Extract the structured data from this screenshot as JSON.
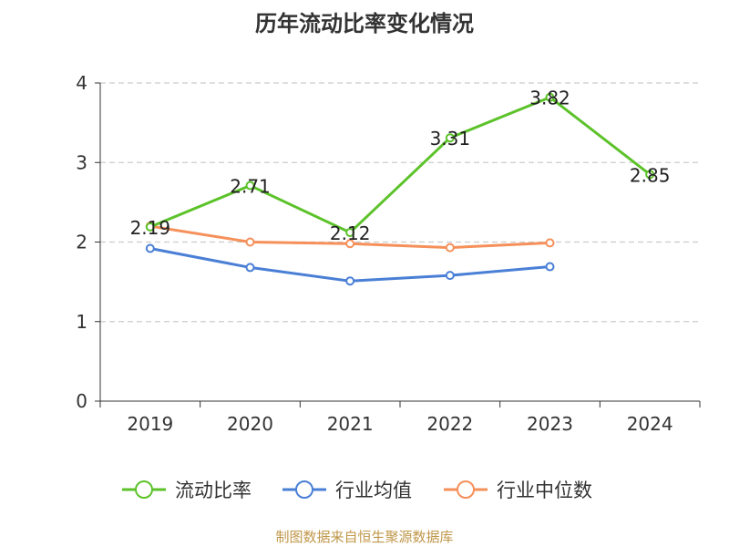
{
  "chart_data": {
    "type": "line",
    "title": "历年流动比率变化情况",
    "categories": [
      "2019",
      "2020",
      "2021",
      "2022",
      "2023",
      "2024"
    ],
    "ylim": [
      0,
      4
    ],
    "yticks": [
      "0",
      "1",
      "2",
      "3",
      "4"
    ],
    "grid": "horizontal-dashed",
    "legend_position": "bottom",
    "series": [
      {
        "name": "流动比率",
        "color": "#5cc22a",
        "values": [
          2.19,
          2.71,
          2.12,
          3.31,
          3.82,
          2.85
        ],
        "labels": [
          "2.19",
          "2.71",
          "2.12",
          "3.31",
          "3.82",
          "2.85"
        ]
      },
      {
        "name": "行业均值",
        "color": "#4a7fd6",
        "values": [
          1.92,
          1.68,
          1.51,
          1.58,
          1.69,
          null
        ]
      },
      {
        "name": "行业中位数",
        "color": "#f5905a",
        "values": [
          2.2,
          2.0,
          1.98,
          1.93,
          1.99,
          null
        ]
      }
    ]
  },
  "footer": {
    "source": "制图数据来自恒生聚源数据库"
  }
}
